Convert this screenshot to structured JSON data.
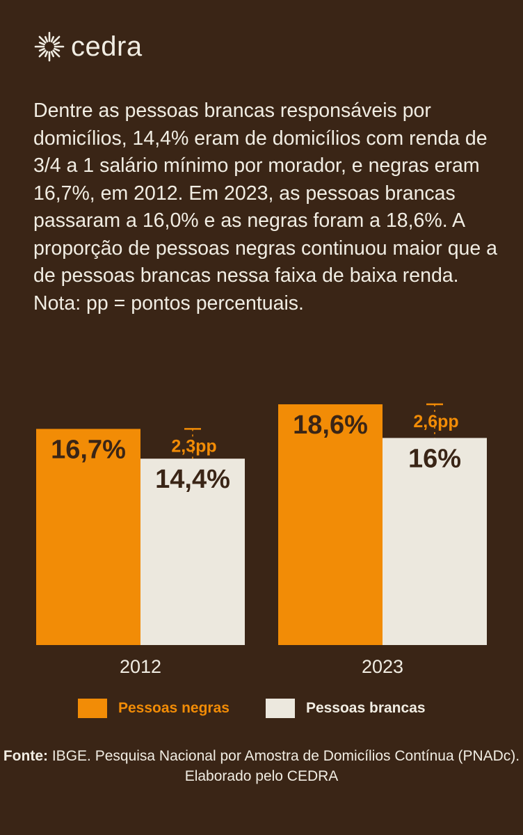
{
  "brand": {
    "name": "cedra",
    "icon": "sun-burst-icon"
  },
  "description": {
    "paragraph": "Dentre as pessoas brancas responsáveis por domicílios, 14,4% eram de domicílios com renda de 3/4 a 1 salário mínimo por morador, e negras eram 16,7%, em 2012. Em 2023, as pessoas brancas passaram a 16,0% e as negras foram a 18,6%. A proporção de pessoas negras continuou maior que a de pessoas brancas nessa faixa de baixa renda.",
    "note": "Nota: pp = pontos percentuais."
  },
  "colors": {
    "background": "#3a2516",
    "negras": "#f28c06",
    "brancas": "#ece8de",
    "text_light": "#f1ede3",
    "text_dark": "#3a2516"
  },
  "chart_data": {
    "type": "bar",
    "categories": [
      "2012",
      "2023"
    ],
    "series": [
      {
        "name": "Pessoas negras",
        "values": [
          16.7,
          18.6
        ],
        "labels": [
          "16,7%",
          "18,6%"
        ]
      },
      {
        "name": "Pessoas brancas",
        "values": [
          14.4,
          16.0
        ],
        "labels": [
          "14,4%",
          "16%"
        ]
      }
    ],
    "differences": [
      "2,3pp",
      "2,6pp"
    ],
    "grid": false,
    "legend_position": "bottom"
  },
  "legend": {
    "negras_label": "Pessoas negras",
    "brancas_label": "Pessoas brancas"
  },
  "source": {
    "label": "Fonte:",
    "text": " IBGE. Pesquisa Nacional por Amostra de Domicílios Contínua (PNADc). Elaborado pelo CEDRA"
  }
}
